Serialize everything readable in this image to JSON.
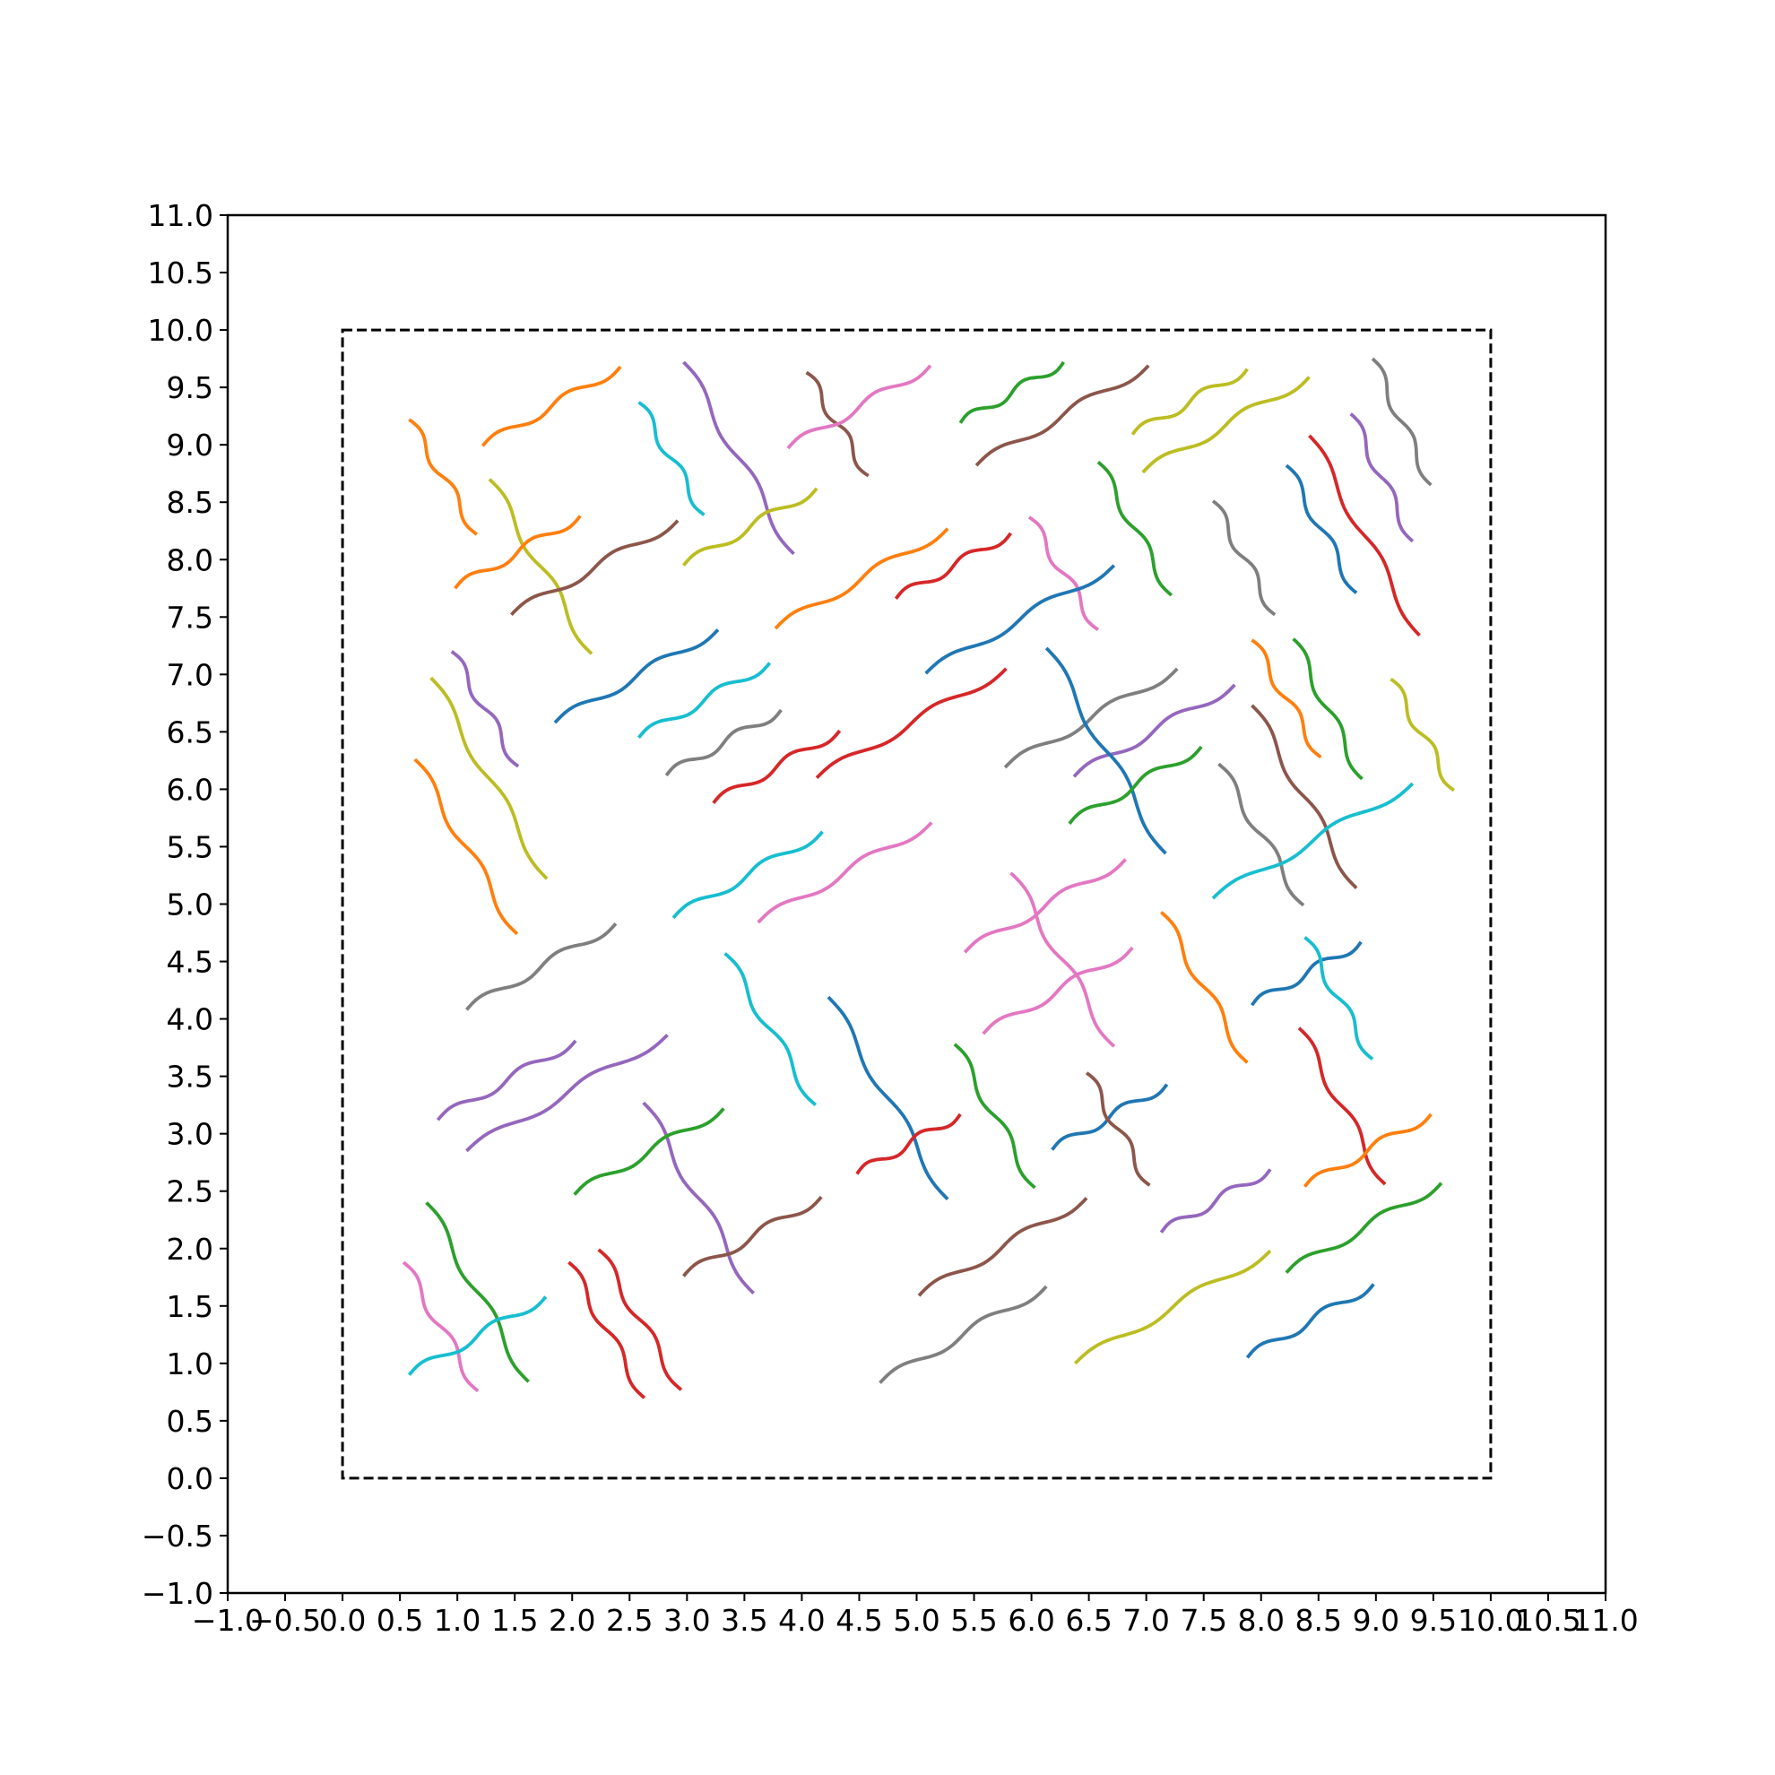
{
  "chart_data": {
    "type": "line",
    "title": "",
    "xlabel": "",
    "ylabel": "",
    "xlim": [
      -1.0,
      11.0
    ],
    "ylim": [
      -1.0,
      11.0
    ],
    "grid": false,
    "legend": "none",
    "x_ticks": [
      -1.0,
      -0.5,
      0.0,
      0.5,
      1.0,
      1.5,
      2.0,
      2.5,
      3.0,
      3.5,
      4.0,
      4.5,
      5.0,
      5.5,
      6.0,
      6.5,
      7.0,
      7.5,
      8.0,
      8.5,
      9.0,
      9.5,
      10.0,
      10.5,
      11.0
    ],
    "x_tick_labels": [
      "−1.0",
      "−0.5",
      "0.0",
      "0.5",
      "1.0",
      "1.5",
      "2.0",
      "2.5",
      "3.0",
      "3.5",
      "4.0",
      "4.5",
      "5.0",
      "5.5",
      "6.0",
      "6.5",
      "7.0",
      "7.5",
      "8.0",
      "8.5",
      "9.0",
      "9.5",
      "10.0",
      "10.5",
      "11.0"
    ],
    "y_ticks": [
      -1.0,
      -0.5,
      0.0,
      0.5,
      1.0,
      1.5,
      2.0,
      2.5,
      3.0,
      3.5,
      4.0,
      4.5,
      5.0,
      5.5,
      6.0,
      6.5,
      7.0,
      7.5,
      8.0,
      8.5,
      9.0,
      9.5,
      10.0,
      10.5,
      11.0
    ],
    "y_tick_labels": [
      "−1.0",
      "−0.5",
      "0.0",
      "0.5",
      "1.0",
      "1.5",
      "2.0",
      "2.5",
      "3.0",
      "3.5",
      "4.0",
      "4.5",
      "5.0",
      "5.5",
      "6.0",
      "6.5",
      "7.0",
      "7.5",
      "8.0",
      "8.5",
      "9.0",
      "9.5",
      "10.0",
      "10.5",
      "11.0"
    ],
    "boundary_box": {
      "x": [
        0,
        10
      ],
      "y": [
        0,
        10
      ],
      "style": "dashed",
      "color": "#000000"
    },
    "wave_amplitude": 0.04,
    "segments": [
      {
        "start": [
          0.58,
          9.22
        ],
        "end": [
          1.17,
          8.22
        ],
        "color": "#ff7f0e"
      },
      {
        "start": [
          1.22,
          8.99
        ],
        "end": [
          2.42,
          9.68
        ],
        "color": "#ff7f0e"
      },
      {
        "start": [
          2.58,
          9.37
        ],
        "end": [
          3.15,
          8.39
        ],
        "color": "#17becf"
      },
      {
        "start": [
          2.97,
          9.72
        ],
        "end": [
          3.93,
          8.05
        ],
        "color": "#9467bd"
      },
      {
        "start": [
          4.04,
          9.63
        ],
        "end": [
          4.58,
          8.73
        ],
        "color": "#8c564b"
      },
      {
        "start": [
          3.88,
          8.97
        ],
        "end": [
          5.12,
          9.69
        ],
        "color": "#e377c2"
      },
      {
        "start": [
          5.38,
          9.19
        ],
        "end": [
          6.28,
          9.72
        ],
        "color": "#2ca02c"
      },
      {
        "start": [
          5.52,
          8.82
        ],
        "end": [
          7.02,
          9.69
        ],
        "color": "#8c564b"
      },
      {
        "start": [
          6.88,
          9.09
        ],
        "end": [
          7.88,
          9.66
        ],
        "color": "#bcbd22"
      },
      {
        "start": [
          6.97,
          8.76
        ],
        "end": [
          8.42,
          9.59
        ],
        "color": "#bcbd22"
      },
      {
        "start": [
          8.97,
          9.75
        ],
        "end": [
          9.48,
          8.65
        ],
        "color": "#7f7f7f"
      },
      {
        "start": [
          8.78,
          9.27
        ],
        "end": [
          9.32,
          8.16
        ],
        "color": "#9467bd"
      },
      {
        "start": [
          8.42,
          9.08
        ],
        "end": [
          9.38,
          7.34
        ],
        "color": "#d62728"
      },
      {
        "start": [
          8.22,
          8.82
        ],
        "end": [
          8.83,
          7.71
        ],
        "color": "#1f77b4"
      },
      {
        "start": [
          7.58,
          8.51
        ],
        "end": [
          8.12,
          7.52
        ],
        "color": "#7f7f7f"
      },
      {
        "start": [
          6.58,
          8.85
        ],
        "end": [
          7.22,
          7.69
        ],
        "color": "#2ca02c"
      },
      {
        "start": [
          5.98,
          8.37
        ],
        "end": [
          6.58,
          7.39
        ],
        "color": "#e377c2"
      },
      {
        "start": [
          1.28,
          8.7
        ],
        "end": [
          2.17,
          7.18
        ],
        "color": "#bcbd22"
      },
      {
        "start": [
          0.98,
          7.75
        ],
        "end": [
          2.07,
          8.38
        ],
        "color": "#ff7f0e"
      },
      {
        "start": [
          1.47,
          7.52
        ],
        "end": [
          2.92,
          8.34
        ],
        "color": "#8c564b"
      },
      {
        "start": [
          2.97,
          7.95
        ],
        "end": [
          4.13,
          8.62
        ],
        "color": "#bcbd22"
      },
      {
        "start": [
          3.77,
          7.4
        ],
        "end": [
          5.27,
          8.27
        ],
        "color": "#ff7f0e"
      },
      {
        "start": [
          4.82,
          7.66
        ],
        "end": [
          5.82,
          8.23
        ],
        "color": "#d62728"
      },
      {
        "start": [
          5.08,
          7.01
        ],
        "end": [
          6.72,
          7.95
        ],
        "color": "#1f77b4"
      },
      {
        "start": [
          0.95,
          7.2
        ],
        "end": [
          1.53,
          6.2
        ],
        "color": "#9467bd"
      },
      {
        "start": [
          0.77,
          6.97
        ],
        "end": [
          1.78,
          5.22
        ],
        "color": "#bcbd22"
      },
      {
        "start": [
          0.63,
          6.26
        ],
        "end": [
          1.52,
          4.74
        ],
        "color": "#ff7f0e"
      },
      {
        "start": [
          1.85,
          6.58
        ],
        "end": [
          3.27,
          7.39
        ],
        "color": "#1f77b4"
      },
      {
        "start": [
          2.58,
          6.45
        ],
        "end": [
          3.72,
          7.1
        ],
        "color": "#17becf"
      },
      {
        "start": [
          2.82,
          6.12
        ],
        "end": [
          3.82,
          6.69
        ],
        "color": "#7f7f7f"
      },
      {
        "start": [
          3.23,
          5.88
        ],
        "end": [
          4.33,
          6.51
        ],
        "color": "#d62728"
      },
      {
        "start": [
          4.13,
          6.1
        ],
        "end": [
          5.78,
          7.05
        ],
        "color": "#d62728"
      },
      {
        "start": [
          5.77,
          6.19
        ],
        "end": [
          7.27,
          7.05
        ],
        "color": "#7f7f7f"
      },
      {
        "start": [
          6.37,
          6.11
        ],
        "end": [
          7.77,
          6.91
        ],
        "color": "#9467bd"
      },
      {
        "start": [
          6.13,
          7.23
        ],
        "end": [
          7.17,
          5.44
        ],
        "color": "#1f77b4"
      },
      {
        "start": [
          6.33,
          5.7
        ],
        "end": [
          7.48,
          6.37
        ],
        "color": "#2ca02c"
      },
      {
        "start": [
          7.92,
          7.3
        ],
        "end": [
          8.52,
          6.28
        ],
        "color": "#ff7f0e"
      },
      {
        "start": [
          8.28,
          7.31
        ],
        "end": [
          8.88,
          6.09
        ],
        "color": "#2ca02c"
      },
      {
        "start": [
          9.13,
          6.96
        ],
        "end": [
          9.68,
          5.99
        ],
        "color": "#bcbd22"
      },
      {
        "start": [
          7.92,
          6.73
        ],
        "end": [
          8.83,
          5.14
        ],
        "color": "#8c564b"
      },
      {
        "start": [
          7.63,
          6.22
        ],
        "end": [
          8.37,
          4.99
        ],
        "color": "#7f7f7f"
      },
      {
        "start": [
          7.58,
          5.05
        ],
        "end": [
          9.32,
          6.05
        ],
        "color": "#17becf"
      },
      {
        "start": [
          2.88,
          4.88
        ],
        "end": [
          4.18,
          5.63
        ],
        "color": "#17becf"
      },
      {
        "start": [
          3.62,
          4.84
        ],
        "end": [
          5.13,
          5.71
        ],
        "color": "#e377c2"
      },
      {
        "start": [
          1.08,
          4.08
        ],
        "end": [
          2.38,
          4.83
        ],
        "color": "#7f7f7f"
      },
      {
        "start": [
          5.42,
          4.58
        ],
        "end": [
          6.82,
          5.39
        ],
        "color": "#e377c2"
      },
      {
        "start": [
          5.82,
          5.27
        ],
        "end": [
          6.72,
          3.76
        ],
        "color": "#e377c2"
      },
      {
        "start": [
          5.58,
          3.87
        ],
        "end": [
          6.88,
          4.62
        ],
        "color": "#e377c2"
      },
      {
        "start": [
          7.13,
          4.93
        ],
        "end": [
          7.88,
          3.62
        ],
        "color": "#ff7f0e"
      },
      {
        "start": [
          7.92,
          4.12
        ],
        "end": [
          8.87,
          4.67
        ],
        "color": "#1f77b4"
      },
      {
        "start": [
          8.38,
          4.71
        ],
        "end": [
          8.97,
          3.65
        ],
        "color": "#17becf"
      },
      {
        "start": [
          3.33,
          4.57
        ],
        "end": [
          4.12,
          3.25
        ],
        "color": "#17becf"
      },
      {
        "start": [
          4.23,
          4.19
        ],
        "end": [
          5.27,
          2.43
        ],
        "color": "#1f77b4"
      },
      {
        "start": [
          5.33,
          3.78
        ],
        "end": [
          6.03,
          2.53
        ],
        "color": "#2ca02c"
      },
      {
        "start": [
          0.83,
          3.12
        ],
        "end": [
          2.03,
          3.81
        ],
        "color": "#9467bd"
      },
      {
        "start": [
          1.08,
          2.85
        ],
        "end": [
          2.83,
          3.86
        ],
        "color": "#9467bd"
      },
      {
        "start": [
          2.62,
          3.27
        ],
        "end": [
          3.58,
          1.61
        ],
        "color": "#9467bd"
      },
      {
        "start": [
          2.02,
          2.47
        ],
        "end": [
          3.32,
          3.22
        ],
        "color": "#2ca02c"
      },
      {
        "start": [
          4.48,
          2.65
        ],
        "end": [
          5.38,
          3.17
        ],
        "color": "#d62728"
      },
      {
        "start": [
          6.18,
          2.86
        ],
        "end": [
          7.18,
          3.43
        ],
        "color": "#1f77b4"
      },
      {
        "start": [
          6.48,
          3.53
        ],
        "end": [
          7.03,
          2.55
        ],
        "color": "#8c564b"
      },
      {
        "start": [
          8.33,
          3.92
        ],
        "end": [
          9.08,
          2.56
        ],
        "color": "#d62728"
      },
      {
        "start": [
          8.38,
          2.54
        ],
        "end": [
          9.48,
          3.17
        ],
        "color": "#ff7f0e"
      },
      {
        "start": [
          2.97,
          1.76
        ],
        "end": [
          4.17,
          2.45
        ],
        "color": "#8c564b"
      },
      {
        "start": [
          7.13,
          2.14
        ],
        "end": [
          8.08,
          2.69
        ],
        "color": "#9467bd"
      },
      {
        "start": [
          8.22,
          1.79
        ],
        "end": [
          9.57,
          2.57
        ],
        "color": "#2ca02c"
      },
      {
        "start": [
          0.73,
          2.4
        ],
        "end": [
          1.62,
          0.84
        ],
        "color": "#2ca02c"
      },
      {
        "start": [
          0.53,
          1.88
        ],
        "end": [
          1.18,
          0.76
        ],
        "color": "#e377c2"
      },
      {
        "start": [
          0.58,
          0.9
        ],
        "end": [
          1.77,
          1.58
        ],
        "color": "#17becf"
      },
      {
        "start": [
          1.97,
          1.88
        ],
        "end": [
          2.63,
          0.7
        ],
        "color": "#d62728"
      },
      {
        "start": [
          2.23,
          1.99
        ],
        "end": [
          2.95,
          0.77
        ],
        "color": "#d62728"
      },
      {
        "start": [
          5.02,
          1.59
        ],
        "end": [
          6.48,
          2.44
        ],
        "color": "#8c564b"
      },
      {
        "start": [
          4.68,
          0.83
        ],
        "end": [
          6.13,
          1.67
        ],
        "color": "#7f7f7f"
      },
      {
        "start": [
          6.38,
          1.0
        ],
        "end": [
          8.08,
          1.98
        ],
        "color": "#bcbd22"
      },
      {
        "start": [
          7.88,
          1.05
        ],
        "end": [
          8.98,
          1.69
        ],
        "color": "#1f77b4"
      }
    ]
  }
}
